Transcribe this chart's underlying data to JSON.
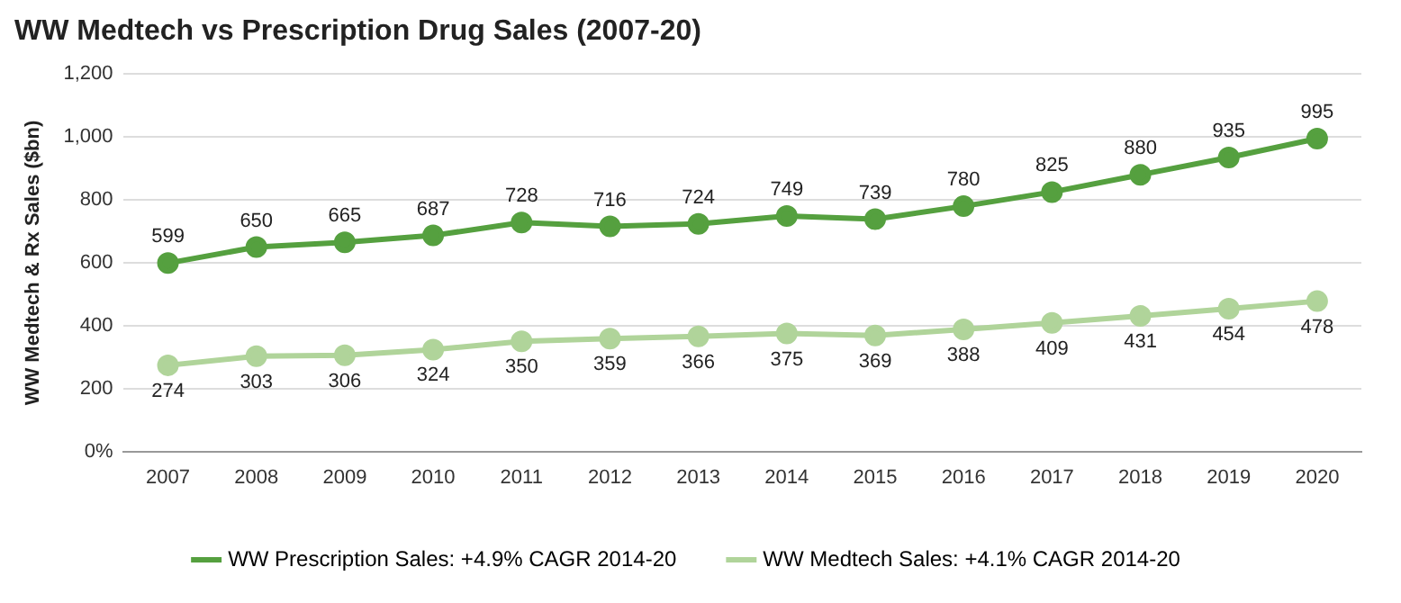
{
  "chart_data": {
    "type": "line",
    "title": "WW Medtech vs Prescription Drug Sales (2007-20)",
    "ylabel": "WW Medtech & Rx Sales ($bn)",
    "categories": [
      "2007",
      "2008",
      "2009",
      "2010",
      "2011",
      "2012",
      "2013",
      "2014",
      "2015",
      "2016",
      "2017",
      "2018",
      "2019",
      "2020"
    ],
    "series": [
      {
        "name": "WW Prescription Sales: +4.9% CAGR 2014-20",
        "color": "#55a03f",
        "values": [
          599,
          650,
          665,
          687,
          728,
          716,
          724,
          749,
          739,
          780,
          825,
          880,
          935,
          995
        ]
      },
      {
        "name": "WW Medtech Sales: +4.1% CAGR 2014-20",
        "color": "#b0d49a",
        "values": [
          274,
          303,
          306,
          324,
          350,
          359,
          366,
          375,
          369,
          388,
          409,
          431,
          454,
          478
        ]
      }
    ],
    "ylim": [
      0,
      1200
    ],
    "yticks": [
      {
        "value": 0,
        "label": "0%"
      },
      200,
      400,
      600,
      800,
      {
        "value": 1000,
        "label": "1,000"
      },
      {
        "value": 1200,
        "label": "1,200"
      }
    ],
    "grid": "y",
    "legend": "bottom",
    "marker": "circle",
    "line_style": "solid",
    "data_labels": true
  }
}
